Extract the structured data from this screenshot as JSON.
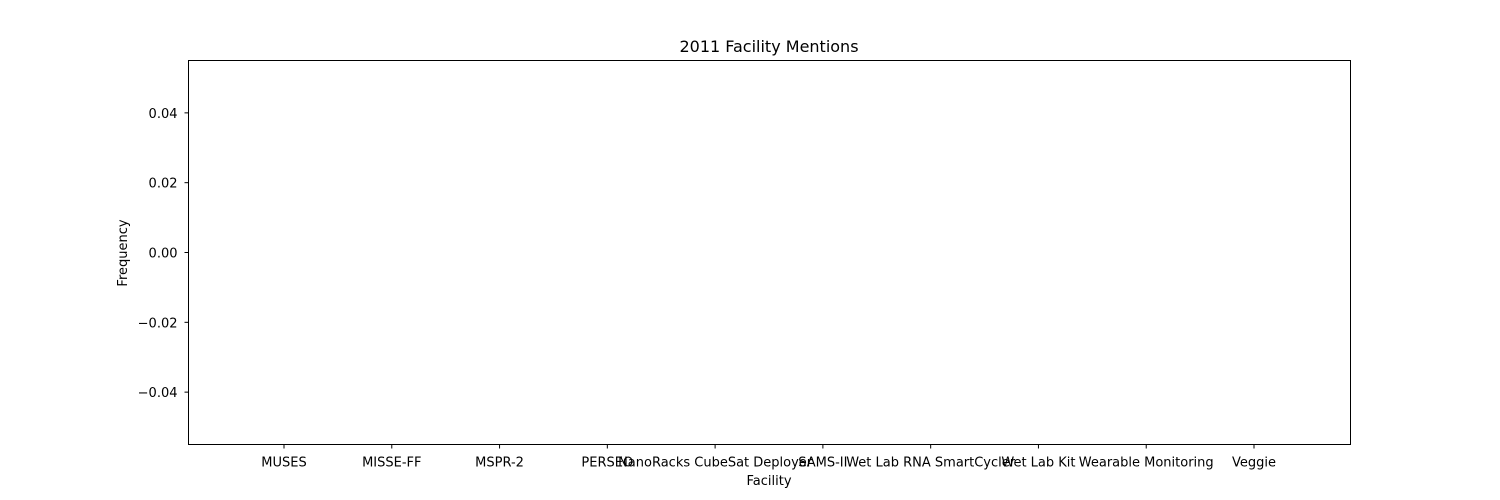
{
  "chart_data": {
    "type": "bar",
    "title": "2011 Facility Mentions",
    "xlabel": "Facility",
    "ylabel": "Frequency",
    "categories": [
      "MUSES",
      "MISSE-FF",
      "MSPR-2",
      "PERSEO",
      "NanoRacks CubeSat Deployer",
      "SAMS-II",
      "Wet Lab RNA SmartCycler",
      "Wet Lab Kit",
      "Wearable Monitoring",
      "Veggie"
    ],
    "values": [
      0,
      0,
      0,
      0,
      0,
      0,
      0,
      0,
      0,
      0
    ],
    "ylim": [
      -0.055,
      0.055
    ],
    "yticks": [
      0.04,
      0.02,
      0.0,
      -0.02,
      -0.04
    ],
    "ytick_labels": [
      "0.04",
      "0.02",
      "0.00",
      "−0.02",
      "−0.04"
    ],
    "grid": false,
    "legend": "none"
  }
}
